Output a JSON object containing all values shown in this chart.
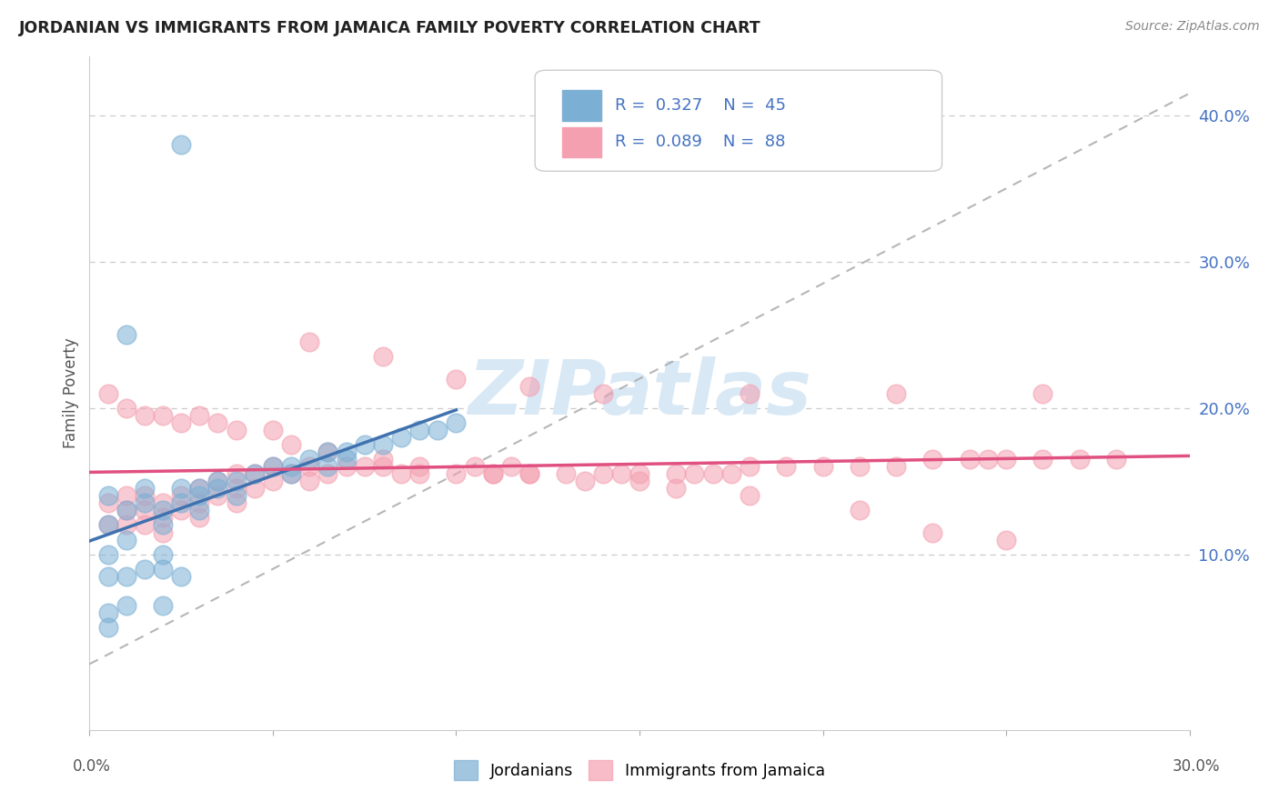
{
  "title": "JORDANIAN VS IMMIGRANTS FROM JAMAICA FAMILY POVERTY CORRELATION CHART",
  "source_text": "Source: ZipAtlas.com",
  "ylabel": "Family Poverty",
  "xlim": [
    0.0,
    0.3
  ],
  "ylim": [
    -0.02,
    0.44
  ],
  "right_yticks": [
    0.1,
    0.2,
    0.3,
    0.4
  ],
  "right_yticklabels": [
    "10.0%",
    "20.0%",
    "30.0%",
    "40.0%"
  ],
  "color_jordan": "#7BAFD4",
  "color_jamaica": "#F4A0B0",
  "color_jordan_line": "#3F72AF",
  "color_jamaica_line": "#E05080",
  "watermark": "ZIPatlas",
  "watermark_color": "#D8E8F5",
  "jordan_x": [
    0.025,
    0.01,
    0.005,
    0.005,
    0.005,
    0.01,
    0.01,
    0.015,
    0.015,
    0.02,
    0.02,
    0.02,
    0.025,
    0.025,
    0.03,
    0.03,
    0.03,
    0.035,
    0.035,
    0.04,
    0.04,
    0.045,
    0.05,
    0.055,
    0.055,
    0.06,
    0.065,
    0.065,
    0.07,
    0.07,
    0.075,
    0.08,
    0.085,
    0.09,
    0.095,
    0.1,
    0.005,
    0.01,
    0.015,
    0.02,
    0.025,
    0.005,
    0.01,
    0.02,
    0.005
  ],
  "jordan_y": [
    0.38,
    0.25,
    0.14,
    0.12,
    0.1,
    0.13,
    0.11,
    0.145,
    0.135,
    0.13,
    0.12,
    0.1,
    0.145,
    0.135,
    0.145,
    0.14,
    0.13,
    0.15,
    0.145,
    0.15,
    0.14,
    0.155,
    0.16,
    0.16,
    0.155,
    0.165,
    0.17,
    0.16,
    0.17,
    0.165,
    0.175,
    0.175,
    0.18,
    0.185,
    0.185,
    0.19,
    0.085,
    0.085,
    0.09,
    0.09,
    0.085,
    0.06,
    0.065,
    0.065,
    0.05
  ],
  "jamaica_x": [
    0.005,
    0.005,
    0.01,
    0.01,
    0.01,
    0.015,
    0.015,
    0.015,
    0.02,
    0.02,
    0.02,
    0.025,
    0.025,
    0.03,
    0.03,
    0.03,
    0.035,
    0.035,
    0.04,
    0.04,
    0.04,
    0.045,
    0.045,
    0.05,
    0.05,
    0.055,
    0.06,
    0.06,
    0.065,
    0.07,
    0.075,
    0.08,
    0.085,
    0.09,
    0.1,
    0.105,
    0.11,
    0.115,
    0.12,
    0.13,
    0.14,
    0.145,
    0.15,
    0.16,
    0.165,
    0.17,
    0.175,
    0.18,
    0.19,
    0.2,
    0.21,
    0.22,
    0.23,
    0.24,
    0.245,
    0.25,
    0.26,
    0.27,
    0.28,
    0.005,
    0.01,
    0.015,
    0.02,
    0.025,
    0.03,
    0.035,
    0.04,
    0.05,
    0.055,
    0.065,
    0.08,
    0.09,
    0.11,
    0.12,
    0.135,
    0.15,
    0.16,
    0.18,
    0.21,
    0.23,
    0.25,
    0.06,
    0.08,
    0.1,
    0.12,
    0.14,
    0.18,
    0.22,
    0.26
  ],
  "jamaica_y": [
    0.135,
    0.12,
    0.14,
    0.13,
    0.12,
    0.14,
    0.13,
    0.12,
    0.135,
    0.125,
    0.115,
    0.14,
    0.13,
    0.145,
    0.135,
    0.125,
    0.15,
    0.14,
    0.155,
    0.145,
    0.135,
    0.155,
    0.145,
    0.16,
    0.15,
    0.155,
    0.16,
    0.15,
    0.155,
    0.16,
    0.16,
    0.16,
    0.155,
    0.16,
    0.155,
    0.16,
    0.155,
    0.16,
    0.155,
    0.155,
    0.155,
    0.155,
    0.155,
    0.155,
    0.155,
    0.155,
    0.155,
    0.16,
    0.16,
    0.16,
    0.16,
    0.16,
    0.165,
    0.165,
    0.165,
    0.165,
    0.165,
    0.165,
    0.165,
    0.21,
    0.2,
    0.195,
    0.195,
    0.19,
    0.195,
    0.19,
    0.185,
    0.185,
    0.175,
    0.17,
    0.165,
    0.155,
    0.155,
    0.155,
    0.15,
    0.15,
    0.145,
    0.14,
    0.13,
    0.115,
    0.11,
    0.245,
    0.235,
    0.22,
    0.215,
    0.21,
    0.21,
    0.21,
    0.21
  ]
}
